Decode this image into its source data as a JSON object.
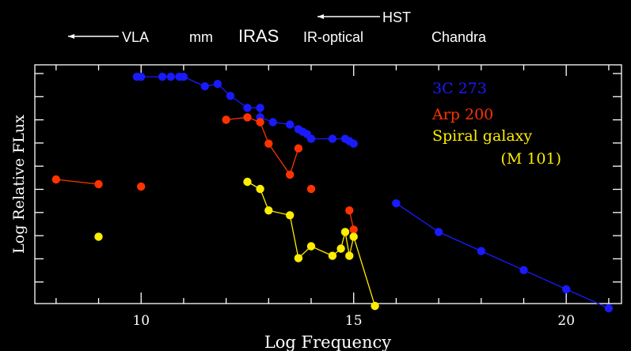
{
  "chart_data": {
    "type": "scatter",
    "xlabel": "Log Frequency",
    "ylabel": "Log Relative FLux",
    "xlim": [
      7.5,
      21.3
    ],
    "ylim": [
      0,
      100
    ],
    "xticks": [
      10,
      15,
      20
    ],
    "xtick_labels": [
      "10",
      "15",
      "20"
    ],
    "grid": false,
    "legend_position": "top-right",
    "band_labels": [
      {
        "text": "VLA",
        "arrow": "left"
      },
      {
        "text": "mm",
        "arrow": "none"
      },
      {
        "text": "IRAS",
        "arrow": "none"
      },
      {
        "text": "IR-optical",
        "arrow": "none"
      },
      {
        "text": "HST",
        "arrow": "left"
      },
      {
        "text": "Chandra",
        "arrow": "none"
      }
    ],
    "legend": [
      {
        "text": "3C 273",
        "color": "#1a1aff"
      },
      {
        "text": "Arp 200",
        "color": "#ff3300"
      },
      {
        "text": "Spiral galaxy",
        "color": "#ffee00"
      },
      {
        "text": "(M 101)",
        "color": "#ffee00"
      }
    ],
    "series": [
      {
        "name": "3C 273",
        "color": "#1a1aff",
        "segments": [
          [
            [
              9.9,
              95
            ],
            [
              10.0,
              95
            ],
            [
              10.5,
              95
            ],
            [
              10.7,
              95
            ],
            [
              10.9,
              95
            ],
            [
              11.0,
              95
            ],
            [
              11.5,
              91
            ],
            [
              11.8,
              92
            ],
            [
              12.1,
              87
            ],
            [
              12.5,
              82
            ],
            [
              12.8,
              82
            ],
            [
              12.8,
              78
            ],
            [
              13.1,
              76
            ],
            [
              13.5,
              75
            ],
            [
              13.7,
              73
            ],
            [
              13.8,
              72
            ],
            [
              13.9,
              71
            ],
            [
              14.0,
              69
            ],
            [
              14.5,
              69
            ],
            [
              14.8,
              69
            ],
            [
              14.9,
              68
            ],
            [
              15.0,
              67
            ]
          ],
          [
            [
              16.0,
              42
            ],
            [
              17.0,
              30
            ],
            [
              18.0,
              22
            ],
            [
              19.0,
              14
            ],
            [
              20.0,
              6
            ],
            [
              21.0,
              -2
            ]
          ]
        ]
      },
      {
        "name": "Arp 200",
        "color": "#ff3300",
        "segments": [
          [
            [
              8.0,
              52
            ],
            [
              9.0,
              50
            ]
          ],
          [
            [
              10.0,
              49
            ]
          ],
          [
            [
              12.0,
              77
            ],
            [
              12.5,
              78
            ],
            [
              12.8,
              76
            ],
            [
              13.0,
              67
            ],
            [
              13.5,
              54
            ],
            [
              13.7,
              65
            ]
          ],
          [
            [
              14.0,
              48
            ]
          ],
          [
            [
              14.9,
              39
            ],
            [
              15.0,
              31
            ]
          ]
        ]
      },
      {
        "name": "Spiral galaxy (M 101)",
        "color": "#ffee00",
        "segments": [
          [
            [
              9.0,
              28
            ]
          ],
          [
            [
              12.5,
              51
            ],
            [
              12.8,
              48
            ],
            [
              13.0,
              39
            ],
            [
              13.5,
              37
            ],
            [
              13.7,
              19
            ],
            [
              14.0,
              24
            ],
            [
              14.5,
              20
            ],
            [
              14.7,
              23
            ],
            [
              14.8,
              30
            ],
            [
              14.9,
              20
            ],
            [
              15.0,
              28
            ],
            [
              15.5,
              -1
            ]
          ]
        ]
      }
    ]
  }
}
